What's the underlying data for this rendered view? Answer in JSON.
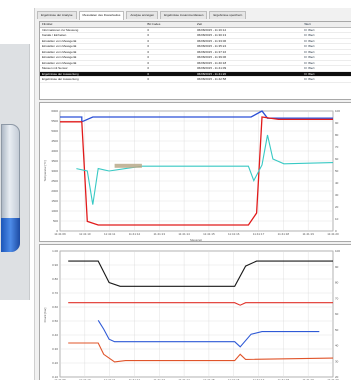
{
  "tabs": [
    {
      "label": "Ergebnisse der Analyse",
      "active": false
    },
    {
      "label": "Messdaten des Dosierlaufes",
      "active": true
    },
    {
      "label": "Analyse anzeigen",
      "active": false
    },
    {
      "label": "Ergebnisse zusammenfassen",
      "active": false
    },
    {
      "label": "Ergebnisse speichern",
      "active": false
    }
  ],
  "table": {
    "headers": [
      "Filmtitel",
      "Bit Codes",
      "Zeit",
      "Wert"
    ],
    "rows": [
      {
        "cells": [
          "Informationen zur Messung",
          "0",
          "06/08/2015 - 11:16:12",
          "D: Wert"
        ],
        "selected": false
      },
      {
        "cells": [
          "Kanäle / Einheiten",
          "0",
          "06/08/2015 - 11:30:13",
          "D: Wert"
        ],
        "selected": false
      },
      {
        "cells": [
          "Einstellen vom Messgerät",
          "0",
          "06/08/2015 - 11:33:06",
          "D: Wert"
        ],
        "selected": false
      },
      {
        "cells": [
          "Einstellen vom Messgerät",
          "0",
          "06/08/2015 - 11:35:24",
          "D: Wert"
        ],
        "selected": false
      },
      {
        "cells": [
          "Einstellen vom Messgerät",
          "0",
          "06/08/2015 - 11:37:16",
          "D: Wert"
        ],
        "selected": false
      },
      {
        "cells": [
          "Einstellen vom Messgerät",
          "0",
          "06/08/2015 - 11:39:06",
          "D: Wert"
        ],
        "selected": false
      },
      {
        "cells": [
          "Einstellen vom Messgerät",
          "0",
          "06/08/2015 - 11:40:18",
          "D: Wert"
        ],
        "selected": false
      },
      {
        "cells": [
          "Messen mit Sensor",
          "0",
          "06/08/2015 - 11:41:09",
          "D: Wert"
        ],
        "selected": false
      },
      {
        "cells": [
          "Ergebnisse der Auswertung",
          "0",
          "06/08/2015 - 11:41:20",
          "D: Wert"
        ],
        "selected": true
      },
      {
        "cells": [
          "Ergebnisse der Auswertung",
          "0",
          "06/08/2015 - 11:42:58",
          "D: Wert"
        ],
        "selected": false
      }
    ]
  },
  "chart_top": {
    "left_ticks": [
      "6000",
      "5500",
      "5000",
      "4500",
      "4000",
      "3500",
      "3000",
      "2500",
      "2000",
      "1500",
      "1000",
      "500",
      "0"
    ],
    "right_ticks": [
      "100",
      "90",
      "80",
      "70",
      "60",
      "50",
      "40",
      "30",
      "20",
      "10",
      "0"
    ],
    "x_ticks": [
      "11:41:09",
      "11:41:10",
      "11:41:11",
      "11:41:12",
      "11:41:13",
      "11:41:14",
      "11:41:15",
      "11:41:16",
      "11:41:17",
      "11:41:18",
      "11:41:19",
      "11:41:20"
    ],
    "ylabel": "Temperatur [°C]",
    "xlabel": "Messzeit",
    "colors": {
      "blue": "#2b4fd6",
      "red": "#e11b1b",
      "cyan": "#38c9c4",
      "highlight": "#b9a98a"
    }
  },
  "chart_bottom": {
    "left_ticks": [
      "1.00",
      "0.90",
      "0.80",
      "0.70",
      "0.60",
      "0.50",
      "0.40",
      "0.30",
      "0.20",
      "0.10"
    ],
    "right_ticks": [
      "100",
      "90",
      "80",
      "70",
      "60",
      "50",
      "40",
      "30",
      "20"
    ],
    "x_ticks": [
      "11:41:09",
      "11:41:10",
      "11:41:11",
      "11:41:12",
      "11:41:13",
      "11:41:14",
      "11:41:15",
      "11:41:16",
      "11:41:17",
      "11:41:18",
      "11:41:19",
      "11:41:20"
    ],
    "ylabel": "Druck [bar]",
    "colors": {
      "black": "#1a1a1a",
      "red": "#e0322a",
      "blue": "#2f5ad6",
      "orange": "#e0542a"
    }
  }
}
